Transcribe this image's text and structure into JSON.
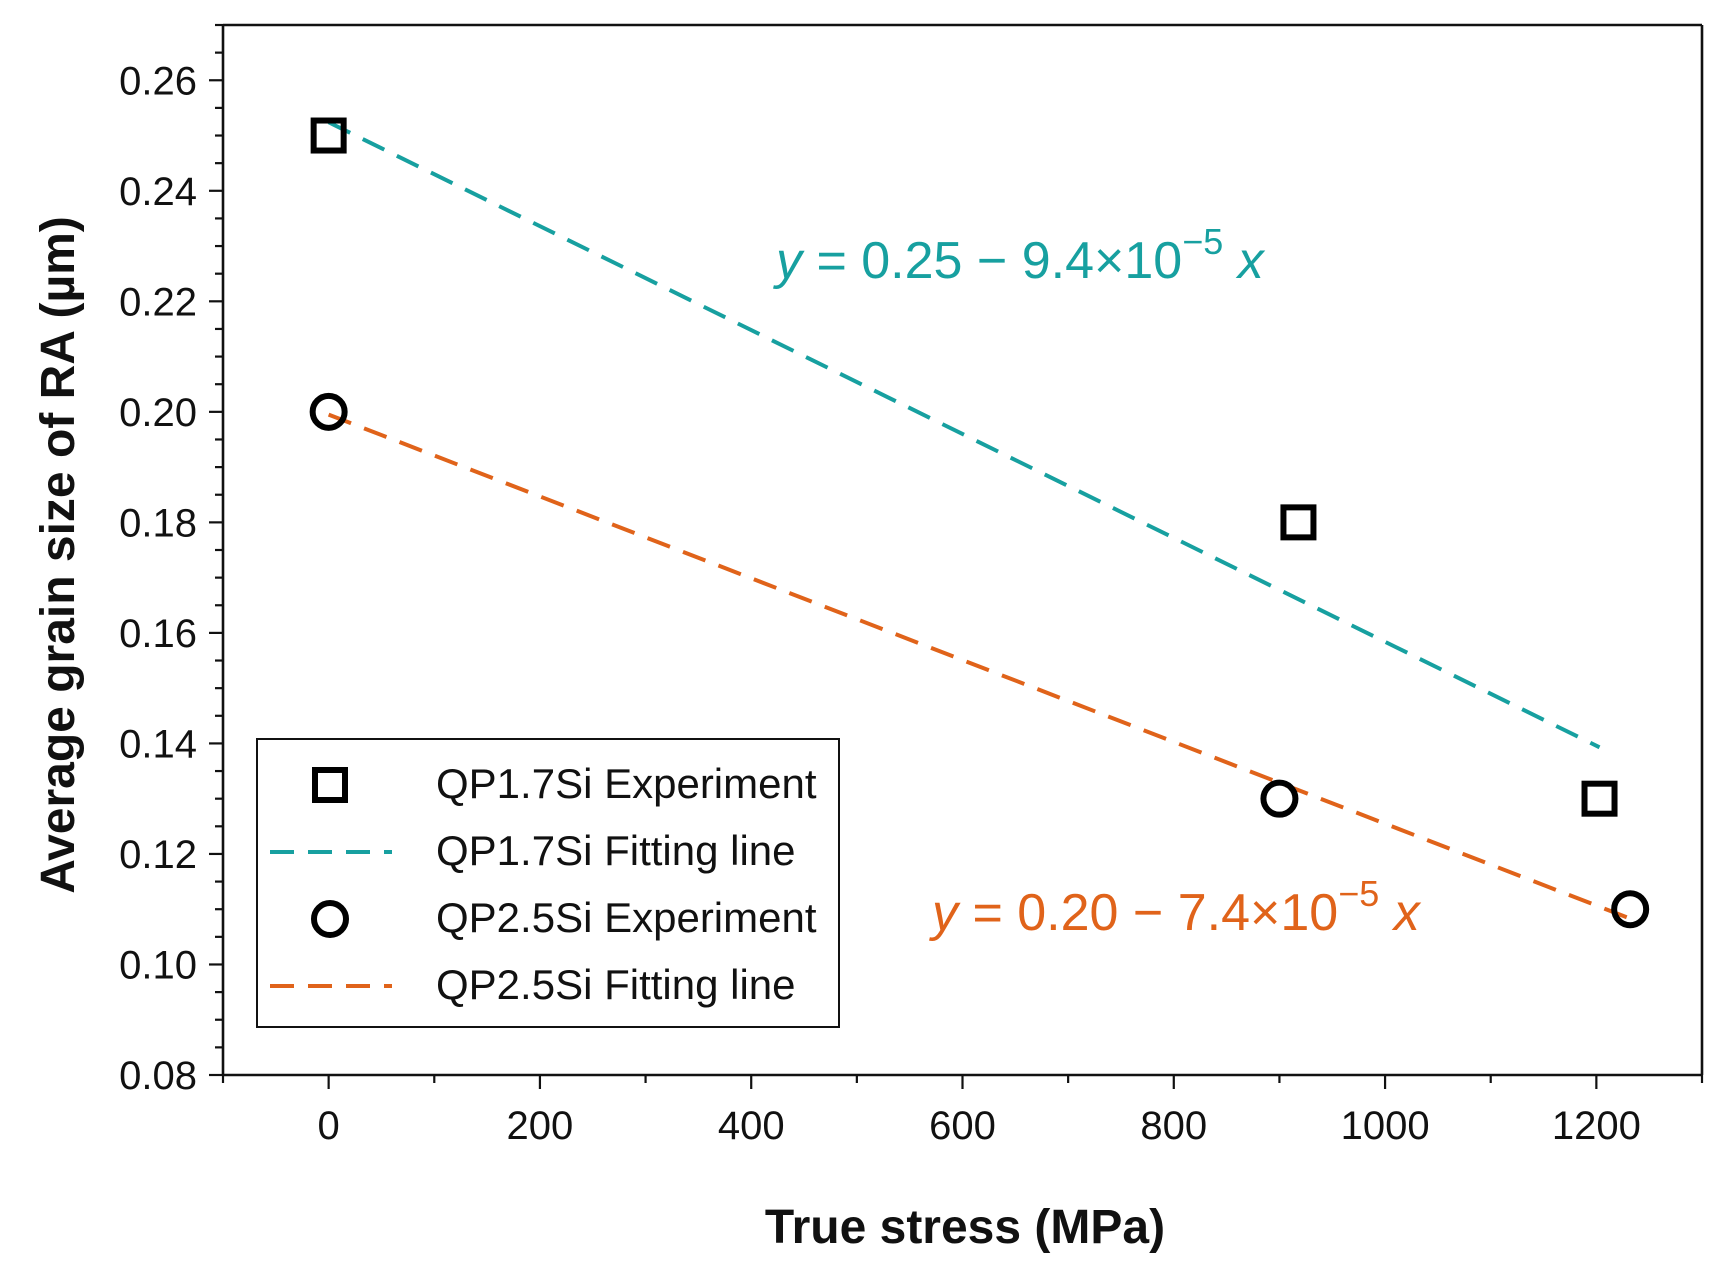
{
  "chart_data": {
    "type": "scatter",
    "title": "",
    "xlabel": "True stress (MPa)",
    "ylabel": "Average grain size of RA (µm)",
    "xlim": [
      -100,
      1300
    ],
    "ylim": [
      0.08,
      0.27
    ],
    "x_ticks": [
      0,
      200,
      400,
      600,
      800,
      1000,
      1200
    ],
    "x_tick_labels": [
      "0",
      "200",
      "400",
      "600",
      "800",
      "1000",
      "1200"
    ],
    "y_ticks": [
      0.08,
      0.1,
      0.12,
      0.14,
      0.16,
      0.18,
      0.2,
      0.22,
      0.24,
      0.26
    ],
    "y_tick_labels": [
      "0.08",
      "0.10",
      "0.12",
      "0.14",
      "0.16",
      "0.18",
      "0.20",
      "0.22",
      "0.24",
      "0.26"
    ],
    "grid": false,
    "legend_position": "bottom-left",
    "series": [
      {
        "name": "QP1.7Si Experiment",
        "kind": "scatter",
        "marker": "square",
        "color": "#000000",
        "x": [
          0,
          918,
          1203
        ],
        "y": [
          0.25,
          0.18,
          0.13
        ]
      },
      {
        "name": "QP1.7Si Fitting line",
        "kind": "line",
        "color": "#17a0a0",
        "x": [
          0,
          1203
        ],
        "y": [
          0.2524,
          0.1393
        ]
      },
      {
        "name": "QP2.5Si Experiment",
        "kind": "scatter",
        "marker": "circle",
        "color": "#000000",
        "x": [
          0,
          900,
          1232
        ],
        "y": [
          0.2,
          0.13,
          0.11
        ]
      },
      {
        "name": "QP2.5Si Fitting line",
        "kind": "line",
        "color": "#e0631a",
        "x": [
          0,
          1232
        ],
        "y": [
          0.1995,
          0.1083
        ]
      }
    ],
    "annotations": [
      {
        "series": "QP1.7Si Fitting line",
        "var_y": "y",
        "middle": " = 0.25 − 9.4×10",
        "exponent": "−5",
        "var_x": "x",
        "color": "#17a0a0"
      },
      {
        "series": "QP2.5Si Fitting line",
        "var_y": "y",
        "middle": " = 0.20 − 7.4×10",
        "exponent": "−5",
        "var_x": "x",
        "color": "#e0631a"
      }
    ]
  }
}
